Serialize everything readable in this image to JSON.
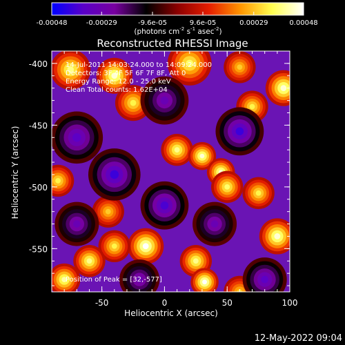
{
  "chart_data": {
    "type": "heatmap",
    "title": "Reconstructed RHESSI Image",
    "xlabel": "Heliocentric X (arcsec)",
    "ylabel": "Heliocentric Y (arcsec)",
    "xlim": [
      -90,
      100
    ],
    "ylim": [
      -585,
      -390
    ],
    "x_ticks": [
      "-50",
      "0",
      "50",
      "100"
    ],
    "x_tick_values": [
      -50,
      0,
      50,
      100
    ],
    "y_ticks": [
      "-400",
      "-450",
      "-500",
      "-550"
    ],
    "y_tick_values": [
      -400,
      -450,
      -500,
      -550
    ],
    "colorbar": {
      "range": [
        -0.00048,
        0.00048
      ],
      "tick_labels": [
        "-0.00048",
        "-0.00029",
        "-9.6e-05",
        "9.6e-05",
        "0.00029",
        "0.00048"
      ],
      "units_pre": "(photons cm",
      "units_exp1": "-2",
      "units_mid1": " s",
      "units_exp2": "-1",
      "units_mid2": " asec",
      "units_exp3": "-2",
      "units_post": ")",
      "colors": [
        "#0000ff",
        "#5a00c8",
        "#7800a0",
        "#000000",
        "#8c0000",
        "#e61e00",
        "#ff9600",
        "#ffff50",
        "#ffffff"
      ]
    },
    "annotations": {
      "time": "14-Jul-2011 14:03:24.000 to 14:09:24.000",
      "detectors": "Detectors: 3F 4F 5F 6F 7F 8F, Att 0",
      "energy": "Energy Range: 12.0 - 25.0 keV",
      "clean": "Clean     Total counts: 1.62E+04",
      "peak": "Position of Peak = [32,-577]"
    },
    "blobs": [
      {
        "x": -75,
        "y": -405,
        "v": 0.0004,
        "s": 10
      },
      {
        "x": -40,
        "y": -410,
        "v": 0.00045,
        "s": 9
      },
      {
        "x": -25,
        "y": -432,
        "v": 0.00035,
        "s": 9
      },
      {
        "x": 20,
        "y": -400,
        "v": 0.00038,
        "s": 11
      },
      {
        "x": 60,
        "y": -403,
        "v": 0.0003,
        "s": 8
      },
      {
        "x": 95,
        "y": -420,
        "v": 0.00045,
        "s": 9
      },
      {
        "x": 70,
        "y": -435,
        "v": 0.00035,
        "s": 8
      },
      {
        "x": 10,
        "y": -470,
        "v": 0.0004,
        "s": 8
      },
      {
        "x": 30,
        "y": -475,
        "v": 0.00045,
        "s": 7
      },
      {
        "x": 45,
        "y": -488,
        "v": 0.00045,
        "s": 7
      },
      {
        "x": 50,
        "y": -500,
        "v": 0.00038,
        "s": 8
      },
      {
        "x": 75,
        "y": -505,
        "v": 0.00035,
        "s": 8
      },
      {
        "x": -85,
        "y": -495,
        "v": 0.00035,
        "s": 8
      },
      {
        "x": -45,
        "y": -520,
        "v": 0.0003,
        "s": 8
      },
      {
        "x": -15,
        "y": -548,
        "v": 0.00048,
        "s": 9
      },
      {
        "x": -40,
        "y": -548,
        "v": 0.00035,
        "s": 8
      },
      {
        "x": -60,
        "y": -560,
        "v": 0.0004,
        "s": 8
      },
      {
        "x": -80,
        "y": -575,
        "v": 0.00042,
        "s": 8
      },
      {
        "x": 25,
        "y": -560,
        "v": 0.0004,
        "s": 8
      },
      {
        "x": 32,
        "y": -577,
        "v": 0.00048,
        "s": 7
      },
      {
        "x": 90,
        "y": -540,
        "v": 0.00045,
        "s": 9
      },
      {
        "x": 60,
        "y": -585,
        "v": 0.0003,
        "s": 8
      },
      {
        "x": 0,
        "y": -430,
        "v": -0.0003,
        "s": 12
      },
      {
        "x": -70,
        "y": -460,
        "v": -0.00035,
        "s": 13
      },
      {
        "x": -40,
        "y": -490,
        "v": -0.0004,
        "s": 13
      },
      {
        "x": 60,
        "y": -455,
        "v": -0.0004,
        "s": 12
      },
      {
        "x": 0,
        "y": -515,
        "v": -0.00038,
        "s": 12
      },
      {
        "x": -70,
        "y": -530,
        "v": -0.0003,
        "s": 11
      },
      {
        "x": 80,
        "y": -575,
        "v": -0.00035,
        "s": 11
      },
      {
        "x": -20,
        "y": -575,
        "v": -0.0003,
        "s": 10
      },
      {
        "x": 40,
        "y": -530,
        "v": -0.0003,
        "s": 11
      }
    ]
  },
  "footer": {
    "date": "12-May-2022 09:04"
  }
}
